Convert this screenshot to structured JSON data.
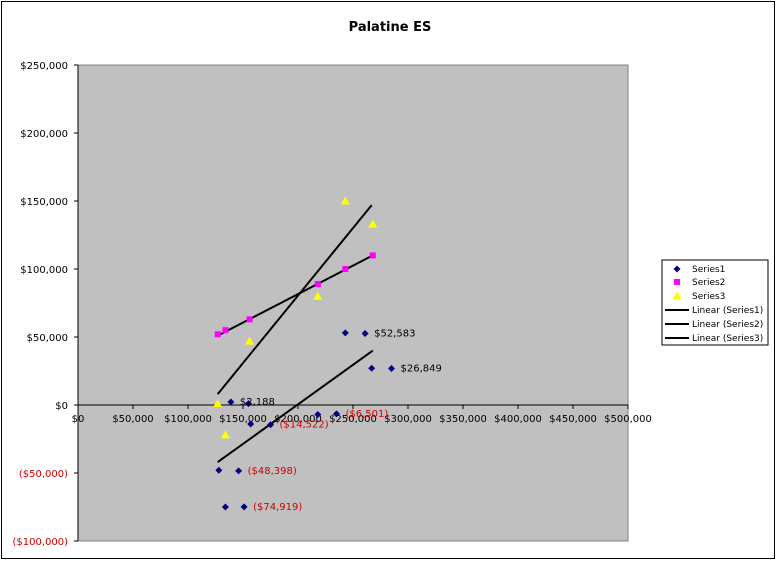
{
  "chart_data": {
    "type": "scatter",
    "title": "Palatine ES",
    "xlim": [
      0,
      500000
    ],
    "ylim": [
      -100000,
      250000
    ],
    "x_ticks": [
      0,
      50000,
      100000,
      150000,
      200000,
      250000,
      300000,
      350000,
      400000,
      450000,
      500000
    ],
    "y_ticks": [
      -100000,
      -50000,
      0,
      50000,
      100000,
      150000,
      200000,
      250000
    ],
    "x_tick_labels": [
      "$0",
      "$50,000",
      "$100,000",
      "$150,000",
      "$200,000",
      "$250,000",
      "$300,000",
      "$350,000",
      "$400,000",
      "$450,000",
      "$500,000"
    ],
    "y_tick_labels": [
      "($100,000)",
      "($50,000)",
      "$0",
      "$50,000",
      "$100,000",
      "$150,000",
      "$200,000",
      "$250,000"
    ],
    "grid": false,
    "legend_position": "right",
    "plot_background": "#c0c0c0",
    "negative_color": "#cc0000",
    "series": [
      {
        "name": "Series1",
        "marker": "diamond",
        "color": "#000080",
        "points": [
          {
            "x": 139000,
            "y": 2188
          },
          {
            "x": 155000,
            "y": 1000
          },
          {
            "x": 157000,
            "y": -14000
          },
          {
            "x": 175000,
            "y": -14522
          },
          {
            "x": 218000,
            "y": -7000
          },
          {
            "x": 235000,
            "y": -6501
          },
          {
            "x": 243000,
            "y": 53000
          },
          {
            "x": 261000,
            "y": 52583
          },
          {
            "x": 267000,
            "y": 27000
          },
          {
            "x": 285000,
            "y": 26849
          },
          {
            "x": 128000,
            "y": -48000
          },
          {
            "x": 146000,
            "y": -48398
          },
          {
            "x": 134000,
            "y": -75000
          },
          {
            "x": 151000,
            "y": -74919
          }
        ],
        "trendline": {
          "name": "Linear (Series1)",
          "from": {
            "x": 127000,
            "y": -42000
          },
          "to": {
            "x": 268000,
            "y": 40000
          }
        }
      },
      {
        "name": "Series2",
        "marker": "square",
        "color": "#ff00ff",
        "points": [
          {
            "x": 127000,
            "y": 52000
          },
          {
            "x": 134000,
            "y": 55000
          },
          {
            "x": 156000,
            "y": 63000
          },
          {
            "x": 218000,
            "y": 89000
          },
          {
            "x": 243000,
            "y": 100000
          },
          {
            "x": 268000,
            "y": 110000
          }
        ],
        "trendline": {
          "name": "Linear (Series2)",
          "from": {
            "x": 127000,
            "y": 51000
          },
          "to": {
            "x": 268000,
            "y": 110000
          }
        }
      },
      {
        "name": "Series3",
        "marker": "triangle",
        "color": "#ffff00",
        "points": [
          {
            "x": 127000,
            "y": 1000
          },
          {
            "x": 134000,
            "y": -22000
          },
          {
            "x": 156000,
            "y": 47000
          },
          {
            "x": 218000,
            "y": 80000
          },
          {
            "x": 243000,
            "y": 150000
          },
          {
            "x": 268000,
            "y": 133000
          }
        ],
        "trendline": {
          "name": "Linear (Series3)",
          "from": {
            "x": 127000,
            "y": 8000
          },
          "to": {
            "x": 267000,
            "y": 147000
          }
        }
      }
    ],
    "data_labels": [
      {
        "text": "$2,188",
        "x": 139000,
        "y": 2188,
        "negative": false
      },
      {
        "text": "($14,522)",
        "x": 175000,
        "y": -14522,
        "negative": true
      },
      {
        "text": "($6,501)",
        "x": 235000,
        "y": -6501,
        "negative": true
      },
      {
        "text": "$52,583",
        "x": 261000,
        "y": 52583,
        "negative": false
      },
      {
        "text": "$26,849",
        "x": 285000,
        "y": 26849,
        "negative": false
      },
      {
        "text": "($48,398)",
        "x": 146000,
        "y": -48398,
        "negative": true
      },
      {
        "text": "($74,919)",
        "x": 151000,
        "y": -74919,
        "negative": true
      }
    ],
    "legend": [
      "Series1",
      "Series2",
      "Series3",
      "Linear (Series1)",
      "Linear (Series2)",
      "Linear (Series3)"
    ]
  }
}
